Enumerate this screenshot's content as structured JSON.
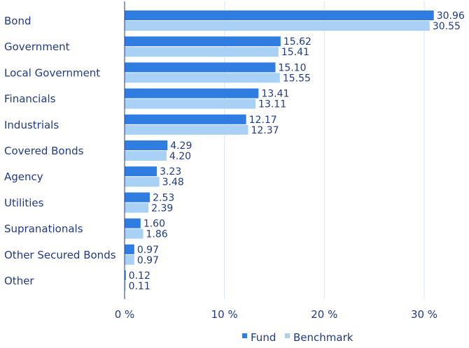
{
  "chart_data": {
    "type": "bar",
    "orientation": "horizontal",
    "categories": [
      "Bond",
      "Government",
      "Local Government",
      "Financials",
      "Industrials",
      "Covered Bonds",
      "Agency",
      "Utilities",
      "Supranationals",
      "Other Secured Bonds",
      "Other"
    ],
    "series": [
      {
        "name": "Fund",
        "color": "#2f7de1",
        "values": [
          30.96,
          15.62,
          15.1,
          13.41,
          12.17,
          4.29,
          3.23,
          2.53,
          1.6,
          0.97,
          0.12
        ],
        "labels": [
          "30.96",
          "15.62",
          "15.10",
          "13.41",
          "12.17",
          "4.29",
          "3.23",
          "2.53",
          "1.60",
          "0.97",
          "0.12"
        ]
      },
      {
        "name": "Benchmark",
        "color": "#a9d0f5",
        "values": [
          30.55,
          15.41,
          15.55,
          13.11,
          12.37,
          4.2,
          3.48,
          2.39,
          1.86,
          0.97,
          0.11
        ],
        "labels": [
          "30.55",
          "15.41",
          "15.55",
          "13.11",
          "12.37",
          "4.20",
          "3.48",
          "2.39",
          "1.86",
          "0.97",
          "0.11"
        ]
      }
    ],
    "xlim": [
      0,
      34
    ],
    "xticks": [
      0,
      10,
      20,
      30
    ],
    "xtick_labels": [
      "0 %",
      "10 %",
      "20 %",
      "30 %"
    ],
    "grid": "vertical",
    "legend": "bottom-center",
    "title": "",
    "xlabel": "",
    "ylabel": ""
  }
}
